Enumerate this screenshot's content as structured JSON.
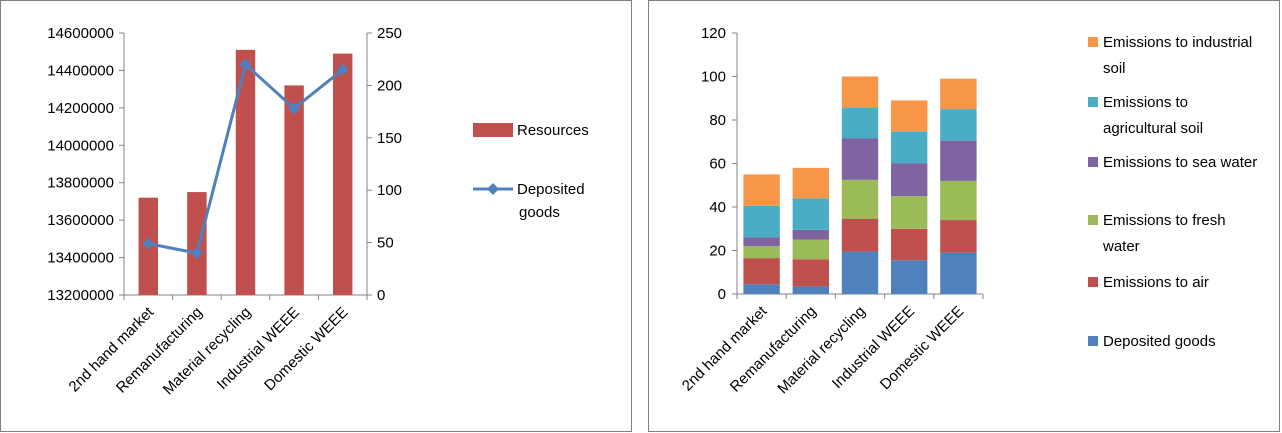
{
  "chart_data": [
    {
      "type": "bar",
      "categories": [
        "2nd hand market",
        "Remanufacturing",
        "Material recycling",
        "Industrial WEEE",
        "Domestic WEEE"
      ],
      "series": [
        {
          "name": "Resources",
          "chart": "bar",
          "axis": "left",
          "color": "#c0504d",
          "values": [
            13720000,
            13750000,
            14510000,
            14320000,
            14490000
          ]
        },
        {
          "name": "Deposited goods",
          "chart": "line",
          "axis": "right",
          "color": "#4f81bd",
          "marker": "diamond",
          "values": [
            49,
            40,
            220,
            178,
            215
          ]
        }
      ],
      "ylim": [
        13200000,
        14600000
      ],
      "yticks": [
        13200000,
        13400000,
        13600000,
        13800000,
        14000000,
        14200000,
        14400000,
        14600000
      ],
      "y2lim": [
        0,
        250
      ],
      "y2ticks": [
        0,
        50,
        100,
        150,
        200,
        250
      ],
      "legend_position": "right",
      "grid": false
    },
    {
      "type": "bar",
      "stacked": true,
      "categories": [
        "2nd hand market",
        "Remanufacturing",
        "Material recycling",
        "Industrial WEEE",
        "Domestic WEEE"
      ],
      "series": [
        {
          "name": "Deposited goods",
          "color": "#4f81bd",
          "values": [
            4.5,
            3.5,
            19.5,
            15.5,
            19
          ]
        },
        {
          "name": "Emissions to air",
          "color": "#c0504d",
          "values": [
            12,
            12.5,
            15,
            14.5,
            15
          ]
        },
        {
          "name": "Emissions to fresh water",
          "color": "#9bbb59",
          "values": [
            5.5,
            9,
            18,
            15,
            18
          ]
        },
        {
          "name": "Emissions to sea water",
          "color": "#8064a2",
          "values": [
            4,
            4.5,
            19,
            15,
            18.5
          ]
        },
        {
          "name": "Emissions to agricultural soil",
          "color": "#4bacc6",
          "values": [
            14.5,
            14.5,
            14,
            14.5,
            14.5
          ]
        },
        {
          "name": "Emissions to industrial soil",
          "color": "#f79646",
          "values": [
            14.5,
            14,
            14.5,
            14.5,
            14
          ]
        }
      ],
      "ylim": [
        0,
        120
      ],
      "yticks": [
        0,
        20,
        40,
        60,
        80,
        100,
        120
      ],
      "legend_position": "right",
      "grid": false
    }
  ],
  "legend_left": {
    "items": [
      {
        "lines": [
          "Resources"
        ]
      },
      {
        "lines": [
          "Deposited",
          "goods"
        ]
      }
    ]
  },
  "legend_right": {
    "items": [
      {
        "lines": [
          "Emissions to industrial",
          "soil"
        ]
      },
      {
        "lines": [
          "Emissions to",
          "agricultural soil"
        ]
      },
      {
        "lines": [
          "Emissions to sea water"
        ]
      },
      {
        "lines": [
          "Emissions to fresh",
          "water"
        ]
      },
      {
        "lines": [
          "Emissions to air"
        ]
      },
      {
        "lines": [
          "Deposited goods"
        ]
      }
    ]
  }
}
